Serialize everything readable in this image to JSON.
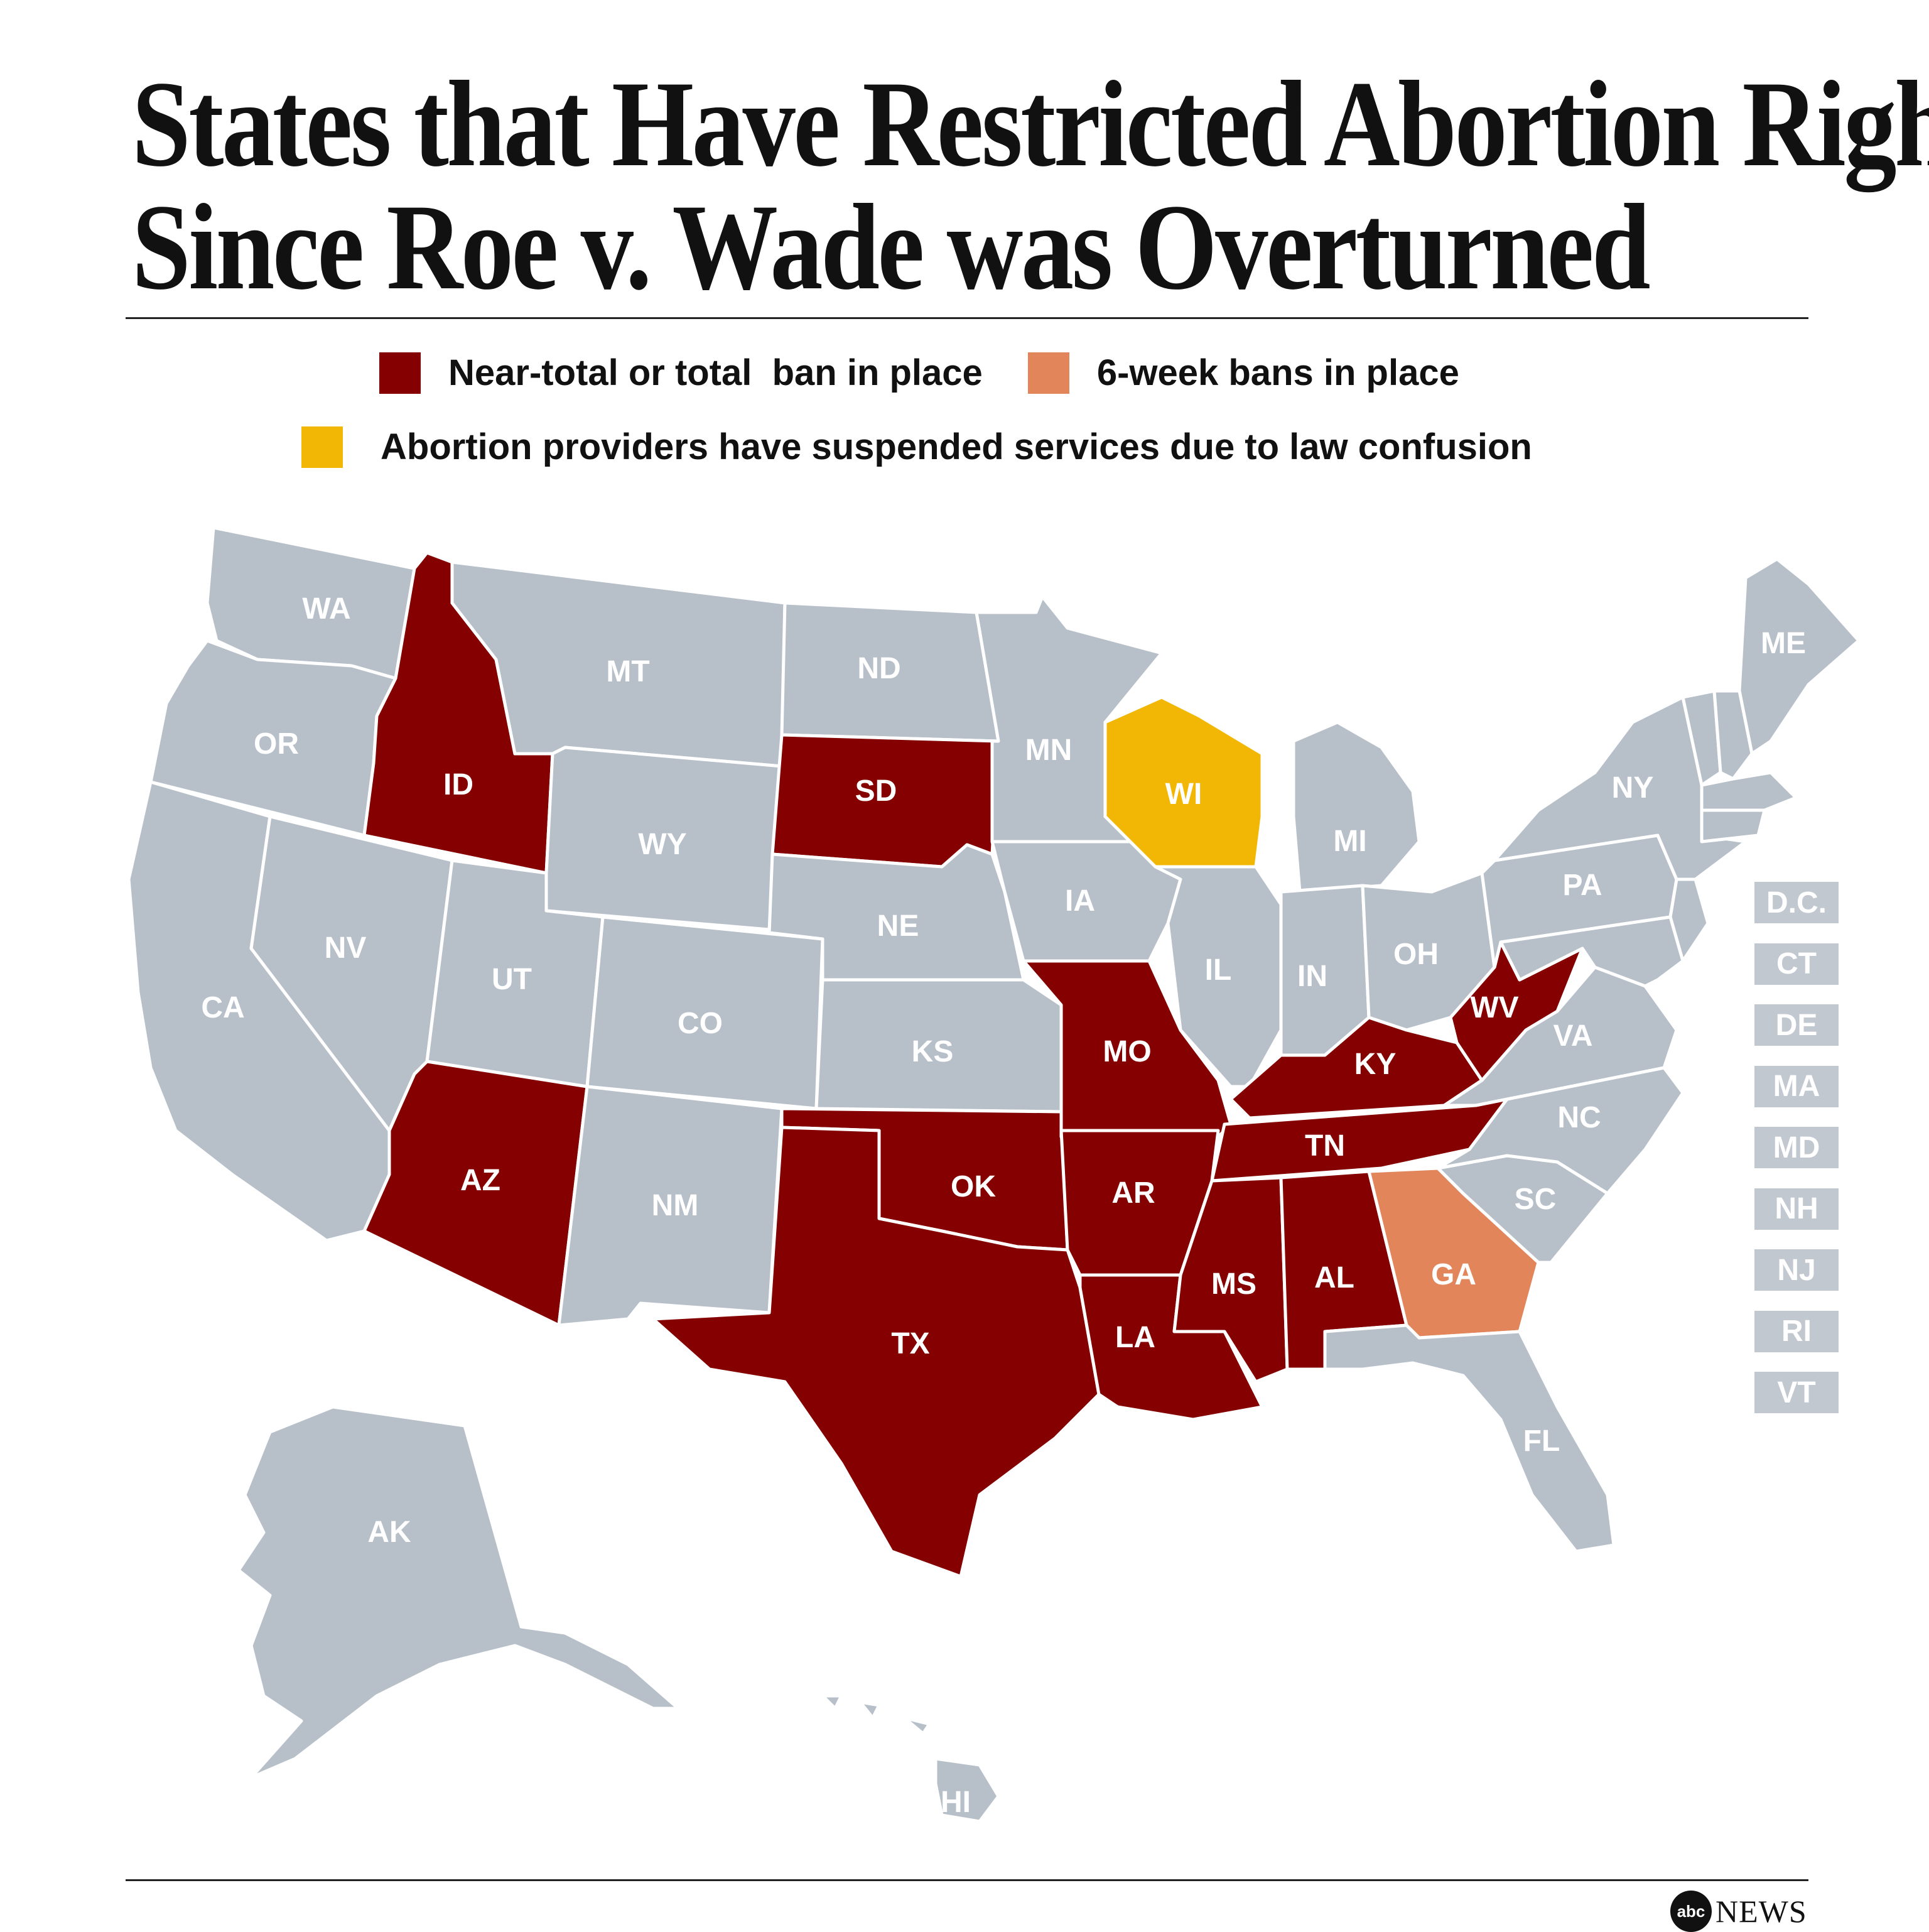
{
  "title": {
    "line1": "States that Have Restricted Abortion Rights",
    "line2": "Since Roe v. Wade was Overturned"
  },
  "legend": [
    {
      "label": "Near-total or total  ban in place",
      "color": "#850000"
    },
    {
      "label": "6-week bans in place",
      "color": "#e3855a"
    },
    {
      "label": "Abortion providers have suspended services due to law confusion",
      "color": "#f2b705"
    }
  ],
  "colors": {
    "none": "#b7bfc9",
    "total_ban": "#850000",
    "six_week": "#e3855a",
    "suspended": "#f2b705",
    "label_box": "#c2c8d0"
  },
  "states": {
    "WA": {
      "label": "WA",
      "status": "none"
    },
    "OR": {
      "label": "OR",
      "status": "none"
    },
    "CA": {
      "label": "CA",
      "status": "none"
    },
    "NV": {
      "label": "NV",
      "status": "none"
    },
    "ID": {
      "label": "ID",
      "status": "total_ban"
    },
    "MT": {
      "label": "MT",
      "status": "none"
    },
    "WY": {
      "label": "WY",
      "status": "none"
    },
    "UT": {
      "label": "UT",
      "status": "none"
    },
    "AZ": {
      "label": "AZ",
      "status": "total_ban"
    },
    "CO": {
      "label": "CO",
      "status": "none"
    },
    "NM": {
      "label": "NM",
      "status": "none"
    },
    "ND": {
      "label": "ND",
      "status": "none"
    },
    "SD": {
      "label": "SD",
      "status": "total_ban"
    },
    "NE": {
      "label": "NE",
      "status": "none"
    },
    "KS": {
      "label": "KS",
      "status": "none"
    },
    "OK": {
      "label": "OK",
      "status": "total_ban"
    },
    "TX": {
      "label": "TX",
      "status": "total_ban"
    },
    "MN": {
      "label": "MN",
      "status": "none"
    },
    "IA": {
      "label": "IA",
      "status": "none"
    },
    "MO": {
      "label": "MO",
      "status": "total_ban"
    },
    "AR": {
      "label": "AR",
      "status": "total_ban"
    },
    "LA": {
      "label": "LA",
      "status": "total_ban"
    },
    "WI": {
      "label": "WI",
      "status": "suspended"
    },
    "IL": {
      "label": "IL",
      "status": "none"
    },
    "MI": {
      "label": "MI",
      "status": "none"
    },
    "IN": {
      "label": "IN",
      "status": "none"
    },
    "OH": {
      "label": "OH",
      "status": "none"
    },
    "KY": {
      "label": "KY",
      "status": "total_ban"
    },
    "TN": {
      "label": "TN",
      "status": "total_ban"
    },
    "MS": {
      "label": "MS",
      "status": "total_ban"
    },
    "AL": {
      "label": "AL",
      "status": "total_ban"
    },
    "GA": {
      "label": "GA",
      "status": "six_week"
    },
    "FL": {
      "label": "FL",
      "status": "none"
    },
    "SC": {
      "label": "SC",
      "status": "none"
    },
    "NC": {
      "label": "NC",
      "status": "none"
    },
    "VA": {
      "label": "VA",
      "status": "none"
    },
    "WV": {
      "label": "WV",
      "status": "total_ban"
    },
    "PA": {
      "label": "PA",
      "status": "none"
    },
    "NY": {
      "label": "NY",
      "status": "none"
    },
    "ME": {
      "label": "ME",
      "status": "none"
    },
    "AK": {
      "label": "AK",
      "status": "none"
    },
    "HI": {
      "label": "HI",
      "status": "none"
    }
  },
  "small_states": [
    "D.C.",
    "CT",
    "DE",
    "MA",
    "MD",
    "NH",
    "NJ",
    "RI",
    "VT"
  ],
  "brand": {
    "logo_mark": "abc",
    "logo_text": "NEWS"
  }
}
